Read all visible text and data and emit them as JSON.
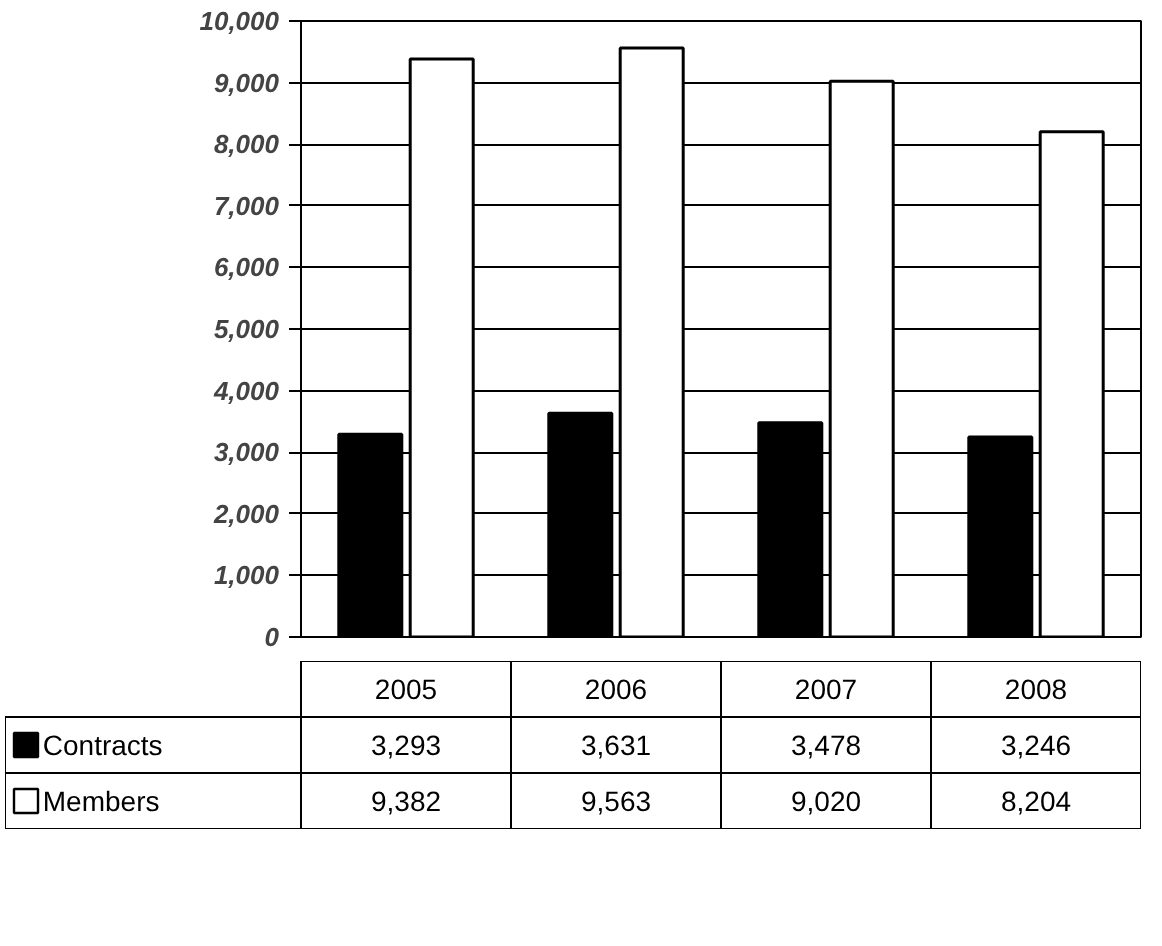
{
  "chart_data": {
    "type": "bar",
    "categories": [
      "2005",
      "2006",
      "2007",
      "2008"
    ],
    "series": [
      {
        "name": "Contracts",
        "color": "#000000",
        "values": [
          3293,
          3631,
          3478,
          3246
        ],
        "value_labels": [
          "3,293",
          "3,631",
          "3,478",
          "3,246"
        ]
      },
      {
        "name": "Members",
        "color": "#ffffff",
        "values": [
          9382,
          9563,
          9020,
          8204
        ],
        "value_labels": [
          "9,382",
          "9,563",
          "9,020",
          "8,204"
        ]
      }
    ],
    "ylim": [
      0,
      10000
    ],
    "yticks": [
      0,
      {
        "value": 1000,
        "label": "1,000"
      },
      {
        "value": 2000,
        "label": "2,000"
      },
      {
        "value": 3000,
        "label": "3,000"
      },
      {
        "value": 4000,
        "label": "4,000"
      },
      {
        "value": 5000,
        "label": "5,000"
      },
      {
        "value": 6000,
        "label": "6,000"
      },
      {
        "value": 7000,
        "label": "7,000"
      },
      {
        "value": 8000,
        "label": "8,000"
      },
      {
        "value": 9000,
        "label": "9,000"
      },
      {
        "value": 10000,
        "label": "10,000"
      }
    ],
    "grid": "y",
    "legend": "bottom"
  }
}
